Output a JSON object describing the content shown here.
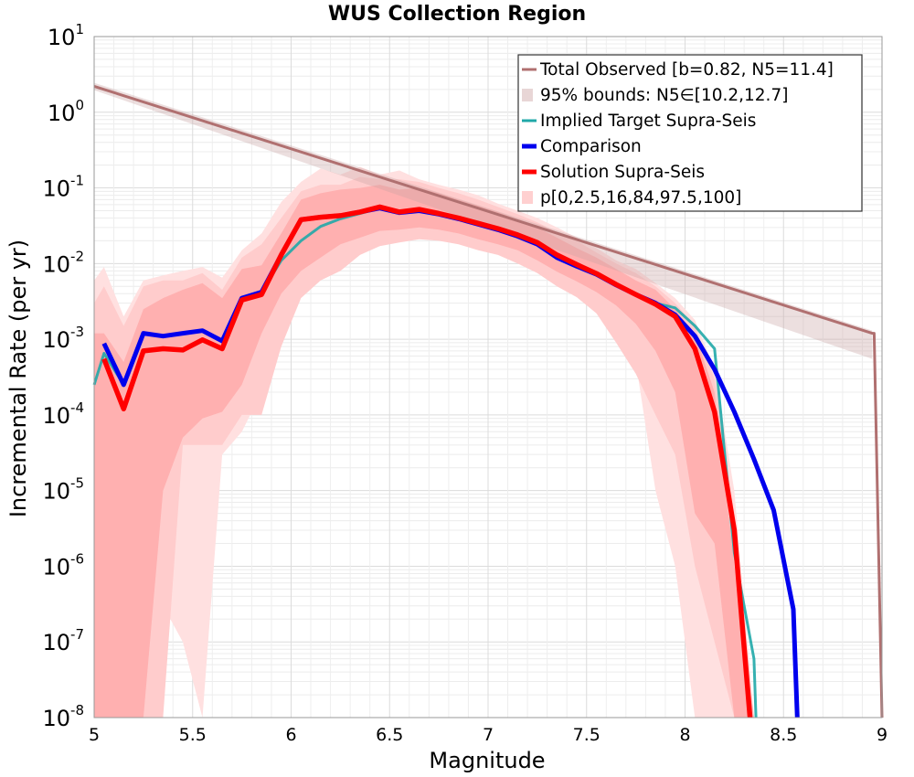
{
  "chart_data": {
    "type": "line",
    "title": "WUS Collection Region",
    "xlabel": "Magnitude",
    "ylabel": "Incremental Rate (per yr)",
    "xlim": [
      5,
      9
    ],
    "ylim": [
      1e-08,
      10
    ],
    "yscale": "log",
    "grid": true,
    "legend_position": "top-right",
    "x_ticks": [
      5,
      5.5,
      6,
      6.5,
      7,
      7.5,
      8,
      8.5,
      9
    ],
    "x_tick_labels": [
      "5",
      "5.5",
      "6",
      "6.5",
      "7",
      "7.5",
      "8",
      "8.5",
      "9"
    ],
    "y_tick_exponents": [
      "1",
      "0",
      "-1",
      "-2",
      "-3",
      "-4",
      "-5",
      "-6",
      "-7",
      "-8"
    ],
    "y_tick_base": "10",
    "legend": [
      {
        "label": "Total Observed [b=0.82, N5=11.4]",
        "style": "line",
        "color": "#b07070"
      },
      {
        "label": "95% bounds: N5∈[10.2,12.7]",
        "style": "band",
        "color": "#e8d6d6"
      },
      {
        "label": "Implied Target Supra-Seis",
        "style": "line",
        "color": "#20a8a8"
      },
      {
        "label": "Comparison",
        "style": "thick-line",
        "color": "#0000ee"
      },
      {
        "label": "Solution Supra-Seis",
        "style": "thick-line",
        "color": "#ff0000"
      },
      {
        "label": "p[0,2.5,16,84,97.5,100]",
        "style": "band",
        "color": "#ffd0d0"
      }
    ],
    "series": [
      {
        "name": "Total Observed [b=0.82, N5=11.4]",
        "color": "#b07070",
        "x": [
          5.0,
          8.95,
          8.96,
          9.0
        ],
        "y": [
          2.2,
          0.0012,
          0.0012,
          1e-08
        ]
      },
      {
        "name": "95% bounds: N5∈[10.2,12.7]",
        "type": "band",
        "color": "#e8d6d6",
        "x": [
          5.0,
          8.95
        ],
        "lower": [
          1.96,
          0.00055
        ],
        "upper": [
          2.45,
          0.0013
        ]
      },
      {
        "name": "Implied Target Supra-Seis",
        "color": "#20a8a8",
        "x": [
          5.0,
          5.05,
          5.15,
          5.25,
          5.35,
          5.45,
          5.55,
          5.65,
          5.75,
          5.85,
          5.95,
          6.05,
          6.15,
          6.25,
          6.35,
          6.45,
          6.55,
          6.65,
          6.75,
          6.85,
          6.95,
          7.05,
          7.15,
          7.25,
          7.35,
          7.45,
          7.55,
          7.65,
          7.75,
          7.85,
          7.95,
          8.05,
          8.15,
          8.25,
          8.35,
          8.36
        ],
        "y": [
          0.00025,
          0.00065,
          0.00025,
          0.0012,
          0.0011,
          0.0012,
          0.0013,
          0.00095,
          0.0035,
          0.0042,
          0.011,
          0.02,
          0.031,
          0.039,
          0.046,
          0.054,
          0.047,
          0.05,
          0.045,
          0.039,
          0.033,
          0.028,
          0.023,
          0.018,
          0.012,
          0.0092,
          0.0072,
          0.0052,
          0.0039,
          0.003,
          0.0026,
          0.0015,
          0.00075,
          1.5e-06,
          6e-08,
          1e-08
        ]
      },
      {
        "name": "Comparison",
        "color": "#0000ee",
        "x": [
          5.05,
          5.15,
          5.25,
          5.35,
          5.45,
          5.55,
          5.65,
          5.75,
          5.85,
          5.95,
          6.05,
          6.15,
          6.25,
          6.35,
          6.45,
          6.55,
          6.65,
          6.75,
          6.85,
          6.95,
          7.05,
          7.15,
          7.25,
          7.35,
          7.45,
          7.55,
          7.65,
          7.75,
          7.85,
          7.95,
          8.05,
          8.15,
          8.25,
          8.35,
          8.45,
          8.55,
          8.57
        ],
        "y": [
          0.00088,
          0.00025,
          0.0012,
          0.0011,
          0.0012,
          0.0013,
          0.00095,
          0.0035,
          0.0042,
          0.013,
          0.038,
          0.041,
          0.043,
          0.048,
          0.054,
          0.047,
          0.05,
          0.045,
          0.039,
          0.033,
          0.028,
          0.023,
          0.018,
          0.012,
          0.0092,
          0.0072,
          0.0052,
          0.0039,
          0.003,
          0.0021,
          0.0011,
          0.0004,
          0.00011,
          2.6e-05,
          5.5e-06,
          2.7e-07,
          1e-08
        ]
      },
      {
        "name": "Solution Supra-Seis",
        "color": "#ff0000",
        "x": [
          5.05,
          5.15,
          5.25,
          5.35,
          5.45,
          5.55,
          5.65,
          5.75,
          5.85,
          5.95,
          6.05,
          6.15,
          6.25,
          6.35,
          6.45,
          6.55,
          6.65,
          6.75,
          6.85,
          6.95,
          7.05,
          7.15,
          7.25,
          7.35,
          7.45,
          7.55,
          7.65,
          7.75,
          7.85,
          7.95,
          8.05,
          8.15,
          8.25,
          8.33
        ],
        "y": [
          0.00055,
          0.00012,
          0.0007,
          0.00075,
          0.00072,
          0.00098,
          0.00075,
          0.0033,
          0.0039,
          0.013,
          0.038,
          0.041,
          0.043,
          0.048,
          0.056,
          0.048,
          0.052,
          0.046,
          0.04,
          0.034,
          0.029,
          0.024,
          0.019,
          0.013,
          0.0097,
          0.0074,
          0.0053,
          0.0039,
          0.0029,
          0.002,
          0.00075,
          0.00011,
          3e-06,
          1e-08
        ]
      },
      {
        "name": "p[0,2.5,16,84,97.5,100]",
        "type": "percentile-bands",
        "color": "#ffd0d0",
        "x": [
          5.0,
          5.05,
          5.15,
          5.25,
          5.35,
          5.45,
          5.55,
          5.65,
          5.75,
          5.85,
          5.95,
          6.05,
          6.15,
          6.25,
          6.35,
          6.45,
          6.55,
          6.65,
          6.75,
          6.85,
          6.95,
          7.05,
          7.15,
          7.25,
          7.35,
          7.45,
          7.55,
          7.65,
          7.75,
          7.85,
          7.95,
          8.05,
          8.15,
          8.25,
          8.35,
          8.4
        ],
        "p0": [
          1e-08,
          1e-08,
          1e-08,
          1e-08,
          3e-07,
          1e-07,
          1e-08,
          3e-05,
          6e-05,
          0.0002,
          0.0015,
          0.005,
          0.006,
          0.012,
          0.015,
          0.02,
          0.022,
          0.024,
          0.022,
          0.02,
          0.017,
          0.014,
          0.011,
          0.0085,
          0.006,
          0.004,
          0.0025,
          0.0011,
          0.0005,
          1e-05,
          1e-06,
          1e-08,
          1e-08,
          1e-08,
          1e-08,
          1e-08
        ],
        "p2_5": [
          1e-08,
          1e-08,
          1e-08,
          1e-08,
          1e-08,
          4e-05,
          4e-05,
          4e-05,
          0.0001,
          0.0001,
          0.0008,
          0.0035,
          0.006,
          0.008,
          0.013,
          0.017,
          0.019,
          0.021,
          0.02,
          0.018,
          0.015,
          0.013,
          0.01,
          0.0075,
          0.005,
          0.0036,
          0.0022,
          0.0009,
          0.00035,
          0.0001,
          3e-05,
          1e-06,
          1e-07,
          1e-08,
          1e-08,
          1e-08
        ],
        "p16": [
          1e-08,
          1e-08,
          1e-08,
          1e-08,
          1e-05,
          5e-05,
          9e-05,
          0.00011,
          0.00025,
          0.0012,
          0.004,
          0.008,
          0.012,
          0.018,
          0.022,
          0.027,
          0.028,
          0.03,
          0.028,
          0.025,
          0.021,
          0.018,
          0.015,
          0.011,
          0.0078,
          0.0058,
          0.0042,
          0.0028,
          0.0016,
          0.0007,
          0.0002,
          5e-06,
          2e-06,
          1e-08,
          1e-08,
          1e-08
        ],
        "p84": [
          0.0012,
          0.0012,
          0.0005,
          0.0025,
          0.0035,
          0.0045,
          0.0055,
          0.0035,
          0.0085,
          0.0095,
          0.025,
          0.07,
          0.085,
          0.095,
          0.1,
          0.11,
          0.095,
          0.1,
          0.085,
          0.07,
          0.058,
          0.048,
          0.038,
          0.03,
          0.022,
          0.016,
          0.012,
          0.0085,
          0.006,
          0.0045,
          0.0025,
          0.0012,
          0.0002,
          1e-06,
          1e-08,
          1e-08
        ],
        "p97_5": [
          0.003,
          0.005,
          0.0015,
          0.005,
          0.006,
          0.006,
          0.0075,
          0.0045,
          0.012,
          0.018,
          0.04,
          0.09,
          0.11,
          0.11,
          0.14,
          0.13,
          0.13,
          0.12,
          0.1,
          0.085,
          0.07,
          0.056,
          0.045,
          0.035,
          0.026,
          0.02,
          0.014,
          0.01,
          0.0075,
          0.005,
          0.003,
          0.0015,
          0.0003,
          5e-06,
          1e-08,
          1e-08
        ],
        "p100": [
          0.006,
          0.009,
          0.002,
          0.006,
          0.007,
          0.008,
          0.009,
          0.0065,
          0.015,
          0.025,
          0.065,
          0.12,
          0.18,
          0.15,
          0.19,
          0.15,
          0.17,
          0.13,
          0.11,
          0.095,
          0.08,
          0.062,
          0.05,
          0.04,
          0.03,
          0.022,
          0.016,
          0.011,
          0.0085,
          0.0055,
          0.0035,
          0.0018,
          0.0004,
          1e-05,
          1e-08,
          1e-08
        ]
      }
    ]
  }
}
